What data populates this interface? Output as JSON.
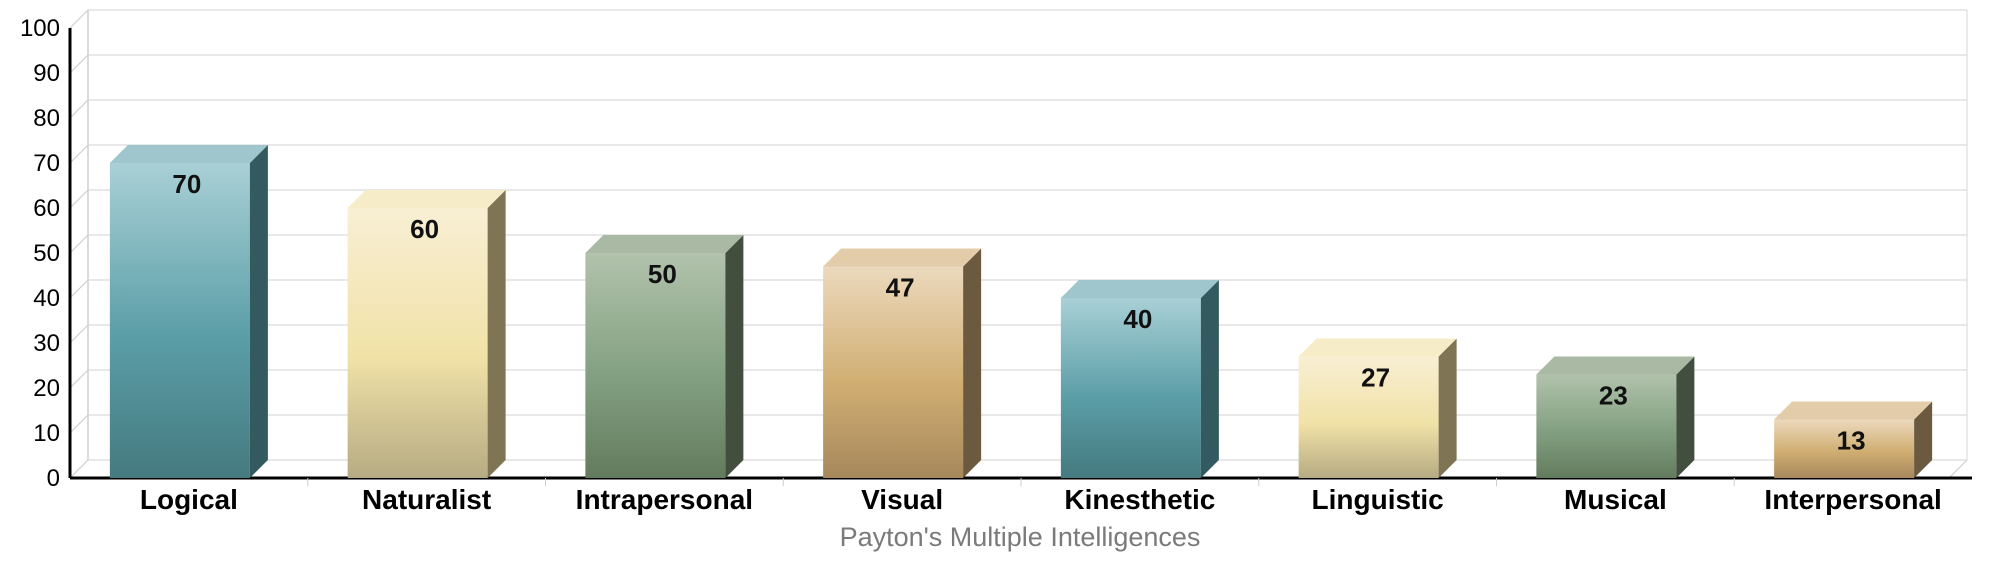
{
  "chart_data": {
    "type": "bar",
    "categories": [
      "Logical",
      "Naturalist",
      "Intrapersonal",
      "Visual",
      "Kinesthetic",
      "Linguistic",
      "Musical",
      "Interpersonal"
    ],
    "values": [
      70,
      60,
      50,
      47,
      40,
      27,
      23,
      13
    ],
    "title": "",
    "xlabel": "Payton's Multiple Intelligences",
    "ylabel": "",
    "ylim": [
      0,
      100
    ],
    "yticks": [
      0,
      10,
      20,
      30,
      40,
      50,
      60,
      70,
      80,
      90,
      100
    ],
    "grid": true,
    "style": "3d-cylinder-columns",
    "colors": [
      {
        "light": "#a9d0d6",
        "mid": "#5b9ea7",
        "dark": "#457a80",
        "side": "#335a5e",
        "top": "#9ec6cc"
      },
      {
        "light": "#f8efd4",
        "mid": "#f1e2a7",
        "dark": "#b6ab83",
        "side": "#7f7555",
        "top": "#f6ecc8"
      },
      {
        "light": "#b2c2ac",
        "mid": "#82a081",
        "dark": "#637b5d",
        "side": "#424f3f",
        "top": "#aab9a4"
      },
      {
        "light": "#ecd9bd",
        "mid": "#d0ae72",
        "dark": "#a7885c",
        "side": "#6b5a3f",
        "top": "#e2ccaa"
      },
      {
        "light": "#a9d0d6",
        "mid": "#5b9ea7",
        "dark": "#457a80",
        "side": "#335a5e",
        "top": "#9ec6cc"
      },
      {
        "light": "#f8efd4",
        "mid": "#f1e2a7",
        "dark": "#b6ab83",
        "side": "#7f7555",
        "top": "#f6ecc8"
      },
      {
        "light": "#b2c2ac",
        "mid": "#82a081",
        "dark": "#637b5d",
        "side": "#424f3f",
        "top": "#aab9a4"
      },
      {
        "light": "#ecd9bd",
        "mid": "#d0ae72",
        "dark": "#a7885c",
        "side": "#6b5a3f",
        "top": "#e2ccaa"
      }
    ]
  }
}
